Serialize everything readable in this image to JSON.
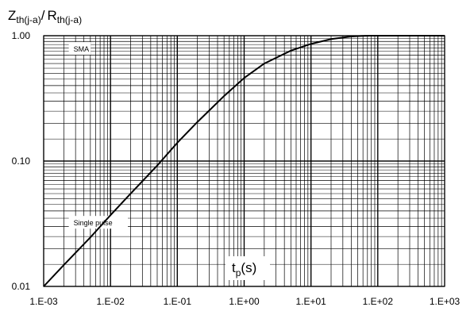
{
  "chart_data": {
    "type": "line",
    "title": "",
    "ylabel": {
      "part1_main": "Z",
      "part1_sub": "th(j-a)",
      "separator": "/",
      "part2_main": "R",
      "part2_sub": "th(j-a)"
    },
    "xlabel": {
      "main": "t",
      "sub": "p",
      "suffix": "(s)"
    },
    "x_scale": "log",
    "y_scale": "log",
    "xlim": [
      0.001,
      1000
    ],
    "ylim": [
      0.01,
      1.0
    ],
    "grid": true,
    "x_tick_values": [
      0.001,
      0.01,
      0.1,
      1,
      10,
      100,
      1000
    ],
    "x_tick_labels": [
      "1.E-03",
      "1.E-02",
      "1.E-01",
      "1.E+00",
      "1.E+01",
      "1.E+02",
      "1.E+03"
    ],
    "y_tick_values": [
      0.01,
      0.1,
      1.0
    ],
    "y_tick_labels": [
      "0.01",
      "0.10",
      "1.00"
    ],
    "annotations": [
      {
        "text": "SMA",
        "x": 0.0028,
        "y": 0.78
      },
      {
        "text": "Single pulse",
        "x": 0.0028,
        "y": 0.032
      }
    ],
    "series": [
      {
        "x": [
          0.001,
          0.002,
          0.005,
          0.01,
          0.02,
          0.05,
          0.1,
          0.2,
          0.5,
          1,
          2,
          5,
          10,
          20,
          40,
          60,
          80,
          100,
          200,
          500,
          1000
        ],
        "y": [
          0.01,
          0.0148,
          0.0246,
          0.037,
          0.055,
          0.092,
          0.14,
          0.205,
          0.33,
          0.46,
          0.6,
          0.76,
          0.86,
          0.94,
          0.985,
          0.996,
          1.0,
          1.0,
          1.0,
          1.0,
          1.0
        ]
      }
    ]
  }
}
